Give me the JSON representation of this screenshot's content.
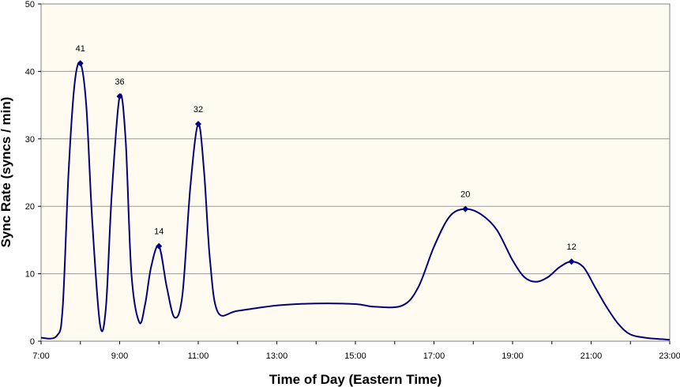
{
  "chart_data": {
    "type": "line",
    "title": "",
    "xlabel": "Time of Day (Eastern Time)",
    "ylabel": "Sync Rate (syncs / min)",
    "xlim": [
      7,
      23
    ],
    "ylim": [
      0,
      50
    ],
    "xticks": [
      {
        "value": 7,
        "label": "7:00"
      },
      {
        "value": 9,
        "label": "9:00"
      },
      {
        "value": 11,
        "label": "11:00"
      },
      {
        "value": 13,
        "label": "13:00"
      },
      {
        "value": 15,
        "label": "15:00"
      },
      {
        "value": 17,
        "label": "17:00"
      },
      {
        "value": 19,
        "label": "19:00"
      },
      {
        "value": 21,
        "label": "21:00"
      },
      {
        "value": 23,
        "label": "23:00"
      }
    ],
    "yticks": [
      0,
      10,
      20,
      30,
      40,
      50
    ],
    "grid": true,
    "legend": "none",
    "colors": {
      "line": "#000080",
      "plot_bg": "#fffbf0",
      "grid": "#999999"
    },
    "series": [
      {
        "x": [
          7.0,
          7.4,
          7.55,
          7.7,
          7.85,
          8.0,
          8.15,
          8.3,
          8.5,
          8.65,
          8.8,
          9.0,
          9.15,
          9.3,
          9.5,
          9.65,
          9.8,
          10.0,
          10.2,
          10.4,
          10.6,
          10.8,
          11.0,
          11.15,
          11.3,
          11.5,
          12.0,
          13.0,
          14.0,
          15.0,
          15.5,
          16.2,
          16.6,
          17.0,
          17.4,
          17.8,
          18.2,
          18.6,
          19.0,
          19.3,
          19.6,
          19.9,
          20.2,
          20.5,
          20.8,
          21.1,
          21.4,
          21.7,
          22.0,
          22.4,
          22.8,
          23.0
        ],
        "y": [
          0.5,
          0.8,
          5.0,
          25.0,
          38.0,
          41.2,
          35.0,
          18.0,
          2.5,
          5.0,
          22.0,
          36.3,
          30.0,
          10.0,
          2.8,
          5.5,
          11.0,
          14.1,
          8.0,
          3.5,
          7.0,
          23.0,
          32.2,
          25.0,
          12.0,
          4.3,
          4.5,
          5.3,
          5.6,
          5.5,
          5.1,
          5.3,
          8.0,
          14.0,
          18.5,
          19.6,
          18.8,
          16.5,
          12.0,
          9.5,
          8.8,
          9.5,
          11.0,
          11.8,
          11.0,
          8.0,
          5.0,
          2.5,
          1.0,
          0.5,
          0.3,
          0.2
        ]
      }
    ],
    "markers": [
      {
        "x": 8.0,
        "y": 41.2,
        "label": "41"
      },
      {
        "x": 9.0,
        "y": 36.3,
        "label": "36"
      },
      {
        "x": 10.0,
        "y": 14.1,
        "label": "14"
      },
      {
        "x": 11.0,
        "y": 32.2,
        "label": "32"
      },
      {
        "x": 17.8,
        "y": 19.6,
        "label": "20"
      },
      {
        "x": 20.5,
        "y": 11.8,
        "label": "12"
      }
    ]
  }
}
